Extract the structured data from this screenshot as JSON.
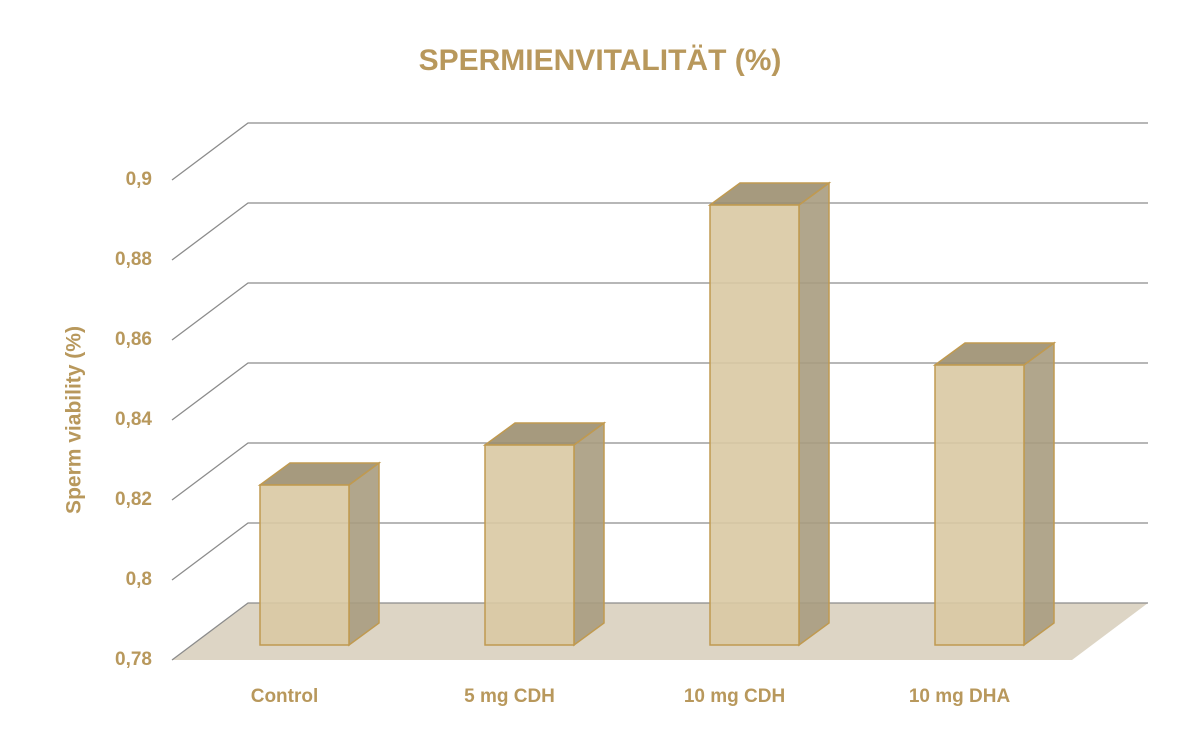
{
  "chart_data": {
    "type": "bar3d",
    "title": "SPERMIENVITALITÄT (%)",
    "y_label": "Sperm viability (%)",
    "categories": [
      "Control",
      "5 mg CDH",
      "10 mg CDH",
      "10 mg DHA"
    ],
    "values": [
      0.82,
      0.83,
      0.89,
      0.85
    ],
    "color": "#d9c9a3",
    "ylim": [
      0.78,
      0.9
    ],
    "yticks": [
      {
        "value": 0.78,
        "label": "0,78"
      },
      {
        "value": 0.8,
        "label": "0,8"
      },
      {
        "value": 0.82,
        "label": "0,82"
      },
      {
        "value": 0.84,
        "label": "0,84"
      },
      {
        "value": 0.86,
        "label": "0,86"
      },
      {
        "value": 0.88,
        "label": "0,88"
      },
      {
        "value": 0.9,
        "label": "0,9"
      }
    ],
    "grid": true
  }
}
